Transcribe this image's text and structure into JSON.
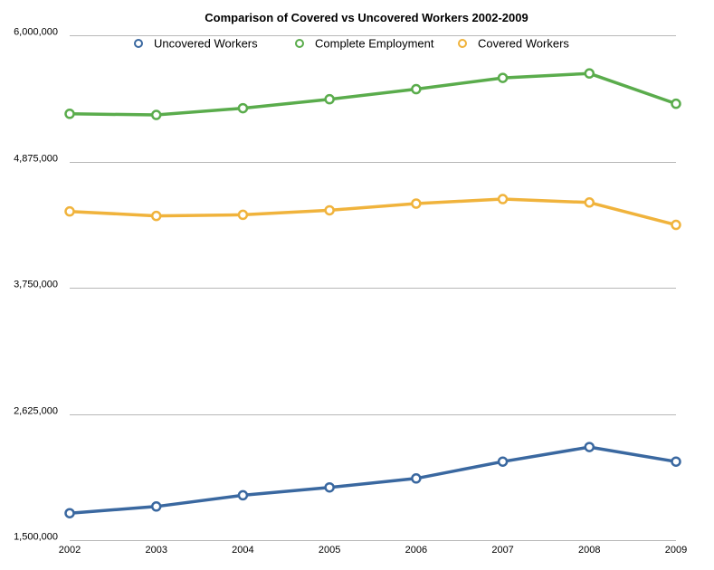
{
  "chart_data": {
    "type": "line",
    "title": "Comparison of Covered vs Uncovered Workers 2002-2009",
    "xlabel": "",
    "ylabel": "",
    "categories": [
      "2002",
      "2003",
      "2004",
      "2005",
      "2006",
      "2007",
      "2008",
      "2009"
    ],
    "ylim": [
      1500000,
      6000000
    ],
    "yticks": [
      1500000,
      2625000,
      3750000,
      4875000,
      6000000
    ],
    "ytick_labels": [
      "1,500,000",
      "2,625,000",
      "3,750,000",
      "4,875,000",
      "6,000,000"
    ],
    "grid": true,
    "legend": "top",
    "series": [
      {
        "name": "Uncovered Workers",
        "color": "#3a68a0",
        "values": [
          1740000,
          1800000,
          1900000,
          1970000,
          2050000,
          2200000,
          2330000,
          2200000
        ]
      },
      {
        "name": "Complete Employment",
        "color": "#5aac4c",
        "values": [
          5300000,
          5290000,
          5350000,
          5430000,
          5520000,
          5620000,
          5660000,
          5390000
        ]
      },
      {
        "name": "Covered Workers",
        "color": "#f0b33c",
        "values": [
          4430000,
          4390000,
          4400000,
          4440000,
          4500000,
          4540000,
          4510000,
          4310000
        ]
      }
    ]
  }
}
